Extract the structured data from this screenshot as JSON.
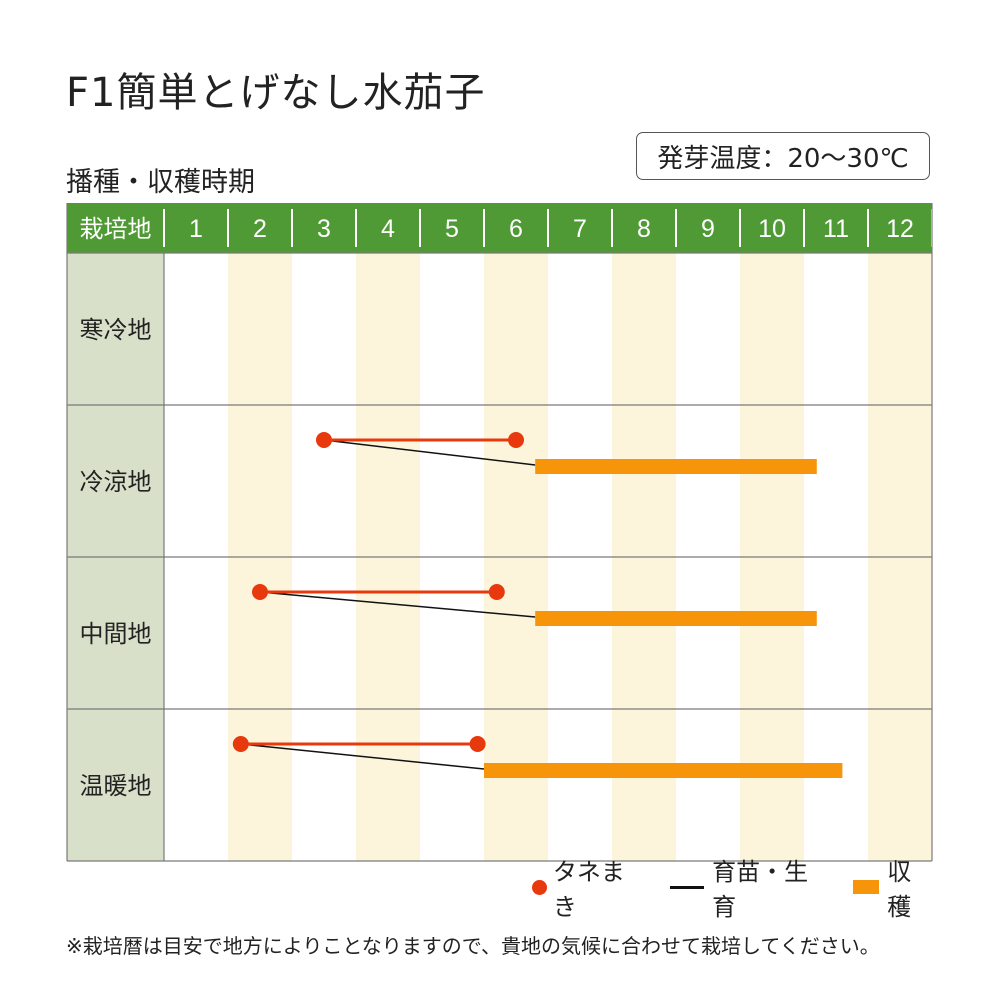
{
  "title": "F1簡単とげなし水茄子",
  "subtitle": "播種・収穫時期",
  "germination_temp": "発芽温度：20～30℃",
  "legend": {
    "sowing": "タネまき",
    "nursery": "育苗・生育",
    "harvest": "収穫"
  },
  "footnote": "※栽培暦は目安で地方によりことなりますので、貴地の気候に合わせて栽培してください。",
  "colors": {
    "header_green": "#4f9a35",
    "row_label_bg": "#d8e0c9",
    "stripe": "#fcf5dc",
    "sowing": "#e8380d",
    "harvest": "#f7950a",
    "nursery_line": "#111111",
    "grid": "#7a7a7a"
  },
  "chart_data": {
    "type": "gantt",
    "header_label": "栽培地",
    "categories": [
      "寒冷地",
      "冷涼地",
      "中間地",
      "温暖地"
    ],
    "months": [
      "1",
      "2",
      "3",
      "4",
      "5",
      "6",
      "7",
      "8",
      "9",
      "10",
      "11",
      "12"
    ],
    "rows": [
      {
        "region": "寒冷地",
        "sowing": null,
        "harvest": null
      },
      {
        "region": "冷涼地",
        "sowing": [
          3.5,
          6.5
        ],
        "harvest": [
          6.8,
          11.2
        ]
      },
      {
        "region": "中間地",
        "sowing": [
          2.5,
          6.2
        ],
        "harvest": [
          6.8,
          11.2
        ]
      },
      {
        "region": "温暖地",
        "sowing": [
          2.2,
          5.9
        ],
        "harvest": [
          6.0,
          11.6
        ]
      }
    ]
  }
}
